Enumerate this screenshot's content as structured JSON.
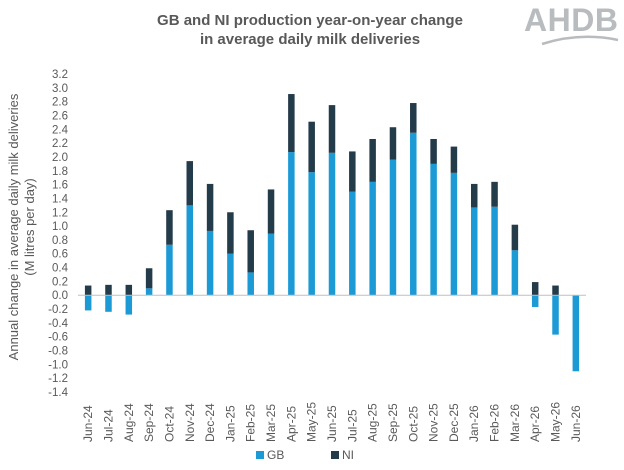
{
  "chart_data": {
    "type": "bar",
    "stacked": true,
    "title": "GB and NI production year-on-year change",
    "subtitle": "in average daily milk deliveries",
    "ylabel": "Annual change in average daily milk deliveries",
    "ylabel_unit": "(M litres per day)",
    "xlabel": "",
    "ylim": [
      -1.4,
      3.2
    ],
    "yticks": [
      3.2,
      3.0,
      2.8,
      2.6,
      2.4,
      2.2,
      2.0,
      1.8,
      1.6,
      1.4,
      1.2,
      1.0,
      0.8,
      0.6,
      0.4,
      0.2,
      0.0,
      -0.2,
      -0.4,
      -0.6,
      -0.8,
      -1.0,
      -1.2,
      -1.4
    ],
    "categories": [
      "Jun-24",
      "Jul-24",
      "Aug-24",
      "Sep-24",
      "Oct-24",
      "Nov-24",
      "Dec-24",
      "Jan-25",
      "Feb-25",
      "Mar-25",
      "Apr-25",
      "May-25",
      "Jun-25",
      "Jul-25",
      "Aug-25",
      "Sep-25",
      "Oct-25",
      "Nov-25",
      "Dec-25",
      "Jan-26",
      "Feb-26",
      "Mar-26",
      "Apr-26",
      "May-26",
      "Jun-26"
    ],
    "series": [
      {
        "name": "GB",
        "color": "#1b9ad6",
        "values": [
          -0.22,
          -0.24,
          -0.28,
          0.1,
          0.73,
          1.3,
          0.93,
          0.6,
          0.33,
          0.89,
          2.07,
          1.78,
          2.06,
          1.5,
          1.64,
          1.96,
          2.35,
          1.9,
          1.77,
          1.27,
          1.28,
          0.65,
          -0.17,
          -0.57,
          -1.1
        ]
      },
      {
        "name": "NI",
        "color": "#243b4a",
        "values": [
          0.14,
          0.15,
          0.15,
          0.29,
          0.5,
          0.64,
          0.68,
          0.6,
          0.61,
          0.64,
          0.84,
          0.73,
          0.69,
          0.58,
          0.62,
          0.47,
          0.43,
          0.36,
          0.38,
          0.34,
          0.36,
          0.37,
          0.19,
          0.14,
          0.0
        ]
      }
    ],
    "legend_position": "bottom",
    "grid": false
  },
  "logo": {
    "text": "AHDB"
  }
}
